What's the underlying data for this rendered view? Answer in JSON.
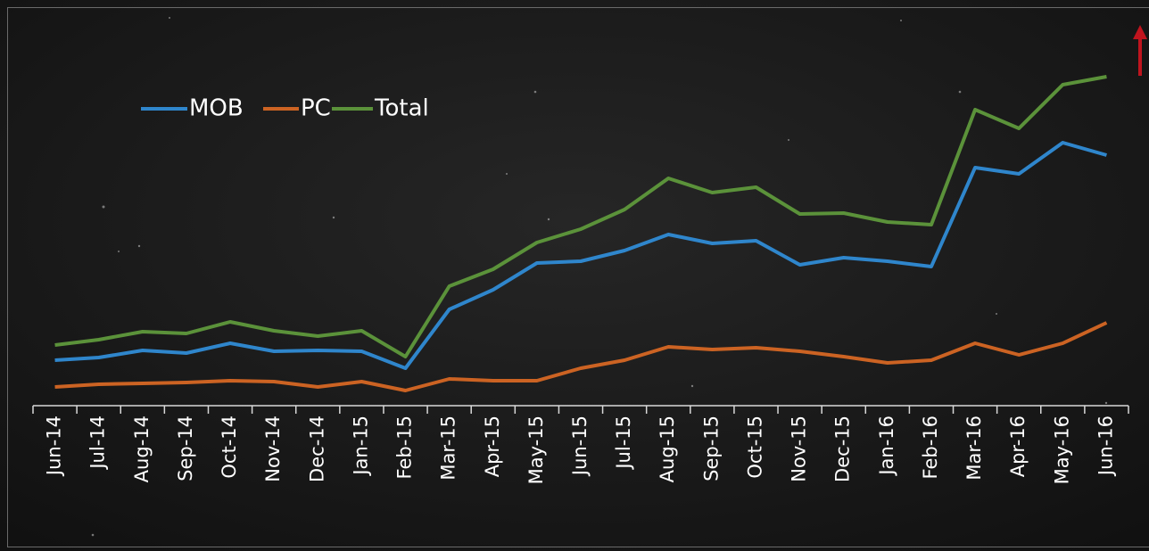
{
  "chart_data": {
    "type": "line",
    "categories": [
      "Jun-14",
      "Jul-14",
      "Aug-14",
      "Sep-14",
      "Oct-14",
      "Nov-14",
      "Dec-14",
      "Jan-15",
      "Feb-15",
      "Mar-15",
      "Apr-15",
      "May-15",
      "Jun-15",
      "Jul-15",
      "Aug-15",
      "Sep-15",
      "Oct-15",
      "Nov-15",
      "Dec-15",
      "Jan-16",
      "Feb-16",
      "Mar-16",
      "Apr-16",
      "May-16",
      "Jun-16"
    ],
    "series": [
      {
        "name": "MOB",
        "color": "#2f86cc",
        "values": [
          12.75,
          13.5,
          15.5,
          14.75,
          17.5,
          15.25,
          15.5,
          15.25,
          10.5,
          27,
          32.5,
          40,
          40.5,
          43.5,
          48,
          45.5,
          46.25,
          39.5,
          41.5,
          40.5,
          39,
          66.75,
          65,
          73.75,
          70.25
        ]
      },
      {
        "name": "PC",
        "color": "#cc6323",
        "values": [
          5.25,
          6,
          6.25,
          6.5,
          7,
          6.75,
          5.25,
          6.75,
          4.25,
          7.5,
          7,
          7,
          10.5,
          12.75,
          16.5,
          15.75,
          16.25,
          15.25,
          13.75,
          12,
          12.75,
          17.5,
          14.25,
          17.5,
          23.25
        ]
      },
      {
        "name": "Total",
        "color": "#5b923a",
        "values": [
          17,
          18.5,
          20.75,
          20.25,
          23.5,
          21,
          19.5,
          21,
          13.75,
          33.5,
          38.25,
          45.75,
          49.5,
          55,
          63.75,
          59.75,
          61.25,
          53.75,
          54,
          51.5,
          50.75,
          83,
          77.75,
          90,
          92.25
        ]
      }
    ],
    "ylim": [
      0,
      100
    ]
  }
}
